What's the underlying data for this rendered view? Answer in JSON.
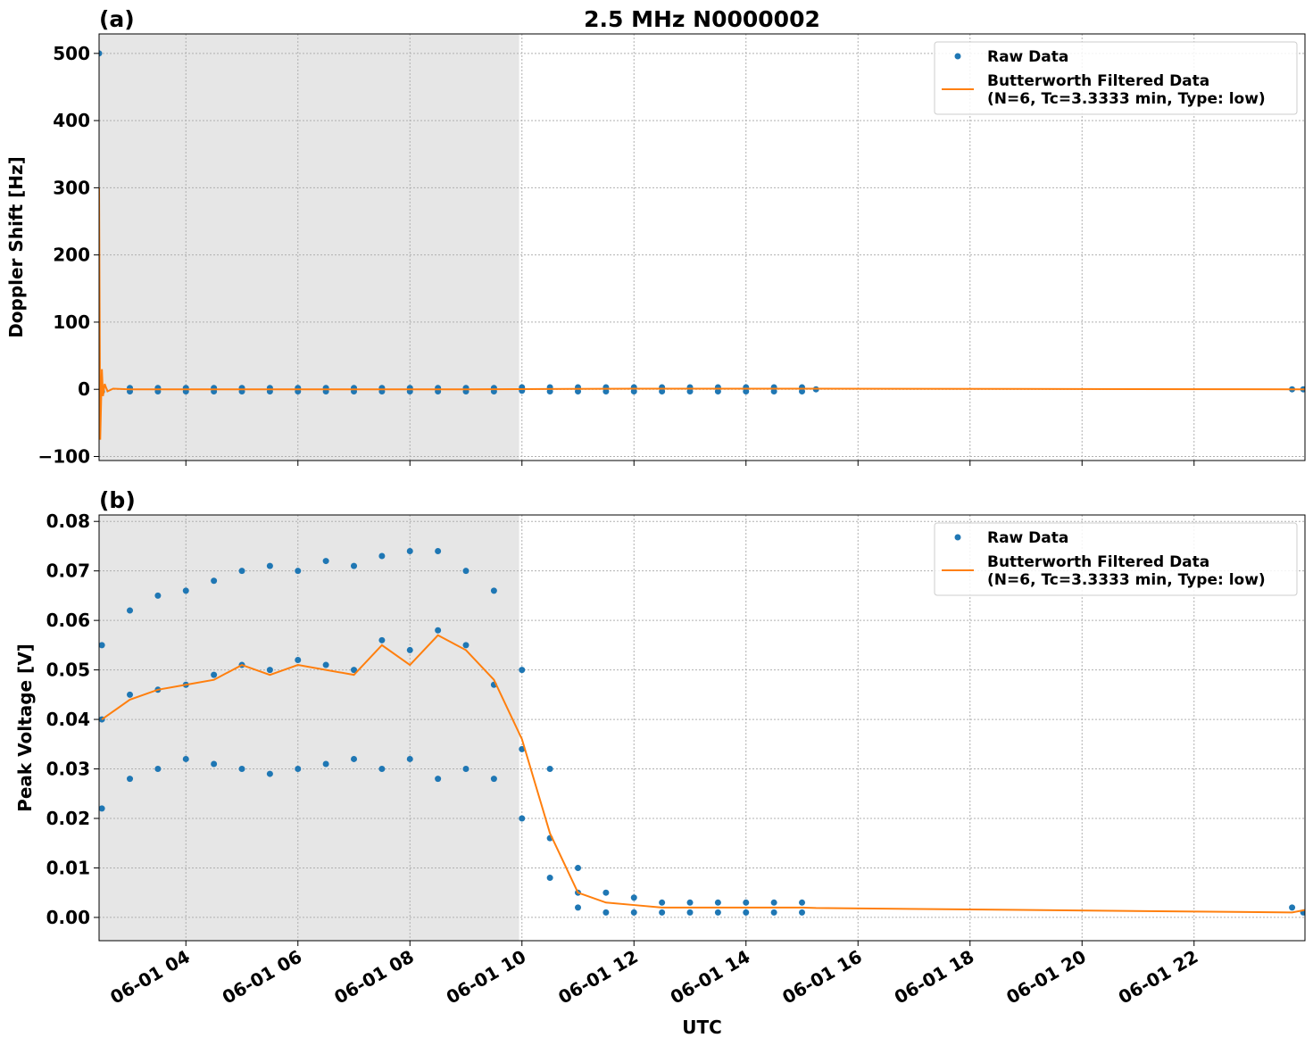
{
  "chart_data": [
    {
      "type": "scatter-line",
      "title": "2.5 MHz N0000002",
      "panel_label": "(a)",
      "ylabel": "Doppler Shift [Hz]",
      "xlim": [
        2.45,
        23.98
      ],
      "ylim": [
        -106,
        529
      ],
      "shade": [
        2.45,
        9.95
      ],
      "grid": true,
      "legend": "upper right",
      "xticks": [
        4,
        6,
        8,
        10,
        12,
        14,
        16,
        18,
        20,
        22
      ],
      "yticks": [
        {
          "value": -100,
          "label": "−100"
        },
        0,
        100,
        200,
        300,
        400,
        500
      ],
      "series": [
        {
          "name": "Raw Data",
          "color": "#1f77b4",
          "mode": "markers",
          "x": [
            2.45,
            2.5,
            2.5,
            3,
            3,
            3.5,
            3.5,
            4,
            4,
            4.5,
            4.5,
            5,
            5,
            5.5,
            5.5,
            6,
            6,
            6.5,
            6.5,
            7,
            7,
            7.5,
            7.5,
            8,
            8,
            8.5,
            8.5,
            9,
            9,
            9.5,
            9.5,
            10,
            10,
            10.5,
            10.5,
            11,
            11,
            11.5,
            11.5,
            12,
            12,
            12.5,
            12.5,
            13,
            13,
            13.5,
            13.5,
            14,
            14,
            14.5,
            14.5,
            15,
            15,
            15.25,
            23.75,
            23.95
          ],
          "values": [
            500,
            2,
            -3,
            2,
            -3,
            2,
            -3,
            2,
            -3,
            2,
            -3,
            2,
            -3,
            2,
            -3,
            2,
            -3,
            2,
            -3,
            2,
            -3,
            2,
            -3,
            2,
            -3,
            2,
            -3,
            2,
            -3,
            2,
            -3,
            3,
            -2,
            3,
            -3,
            3,
            -3,
            3,
            -3,
            3,
            -3,
            3,
            -3,
            3,
            -3,
            3,
            -3,
            3,
            -3,
            3,
            -3,
            3,
            -3,
            0,
            0,
            0
          ]
        },
        {
          "name": "Butterworth Filtered Data",
          "label_note": "(N=6, Tc=3.3333 min, Type: low)",
          "color": "#ff7f0e",
          "mode": "line",
          "x": [
            2.45,
            2.47,
            2.5,
            2.52,
            2.55,
            2.6,
            2.7,
            3,
            6,
            9,
            12,
            15.25,
            23.98
          ],
          "values": [
            300,
            -75,
            30,
            -10,
            8,
            -3,
            1,
            0,
            0,
            0,
            1,
            1,
            0
          ]
        }
      ]
    },
    {
      "type": "scatter-line",
      "panel_label": "(b)",
      "ylabel": "Peak Voltage [V]",
      "xlabel": "UTC",
      "xlim": [
        2.45,
        23.98
      ],
      "ylim": [
        -0.0047,
        0.0813
      ],
      "shade": [
        2.45,
        9.95
      ],
      "grid": true,
      "legend": "upper right",
      "xticks": [
        {
          "value": 4,
          "label": "06-01 04"
        },
        {
          "value": 6,
          "label": "06-01 06"
        },
        {
          "value": 8,
          "label": "06-01 08"
        },
        {
          "value": 10,
          "label": "06-01 10"
        },
        {
          "value": 12,
          "label": "06-01 12"
        },
        {
          "value": 14,
          "label": "06-01 14"
        },
        {
          "value": 16,
          "label": "06-01 16"
        },
        {
          "value": 18,
          "label": "06-01 18"
        },
        {
          "value": 20,
          "label": "06-01 20"
        },
        {
          "value": 22,
          "label": "06-01 22"
        }
      ],
      "yticks": [
        {
          "value": 0,
          "label": "0.00"
        },
        0.01,
        0.02,
        0.03,
        0.04,
        0.05,
        0.06,
        0.07,
        0.08
      ],
      "series": [
        {
          "name": "Raw Data",
          "color": "#1f77b4",
          "mode": "markers",
          "x": [
            2.5,
            2.5,
            2.5,
            3,
            3,
            3,
            3.5,
            3.5,
            3.5,
            4,
            4,
            4,
            4.5,
            4.5,
            4.5,
            5,
            5,
            5,
            5.5,
            5.5,
            5.5,
            6,
            6,
            6,
            6.5,
            6.5,
            6.5,
            7,
            7,
            7,
            7.5,
            7.5,
            7.5,
            8,
            8,
            8,
            8.5,
            8.5,
            8.5,
            9,
            9,
            9,
            9.5,
            9.5,
            9.5,
            10,
            10,
            10,
            10.5,
            10.5,
            10.5,
            11,
            11,
            11,
            11.5,
            11.5,
            12,
            12,
            12.5,
            12.5,
            13,
            13,
            13.5,
            13.5,
            14,
            14,
            14.5,
            14.5,
            15,
            15,
            23.75,
            23.95
          ],
          "values": [
            0.055,
            0.04,
            0.022,
            0.062,
            0.045,
            0.028,
            0.065,
            0.046,
            0.03,
            0.066,
            0.047,
            0.032,
            0.068,
            0.049,
            0.031,
            0.07,
            0.051,
            0.03,
            0.071,
            0.05,
            0.029,
            0.07,
            0.052,
            0.03,
            0.072,
            0.051,
            0.031,
            0.071,
            0.05,
            0.032,
            0.073,
            0.056,
            0.03,
            0.074,
            0.054,
            0.032,
            0.074,
            0.058,
            0.028,
            0.07,
            0.055,
            0.03,
            0.066,
            0.047,
            0.028,
            0.05,
            0.034,
            0.02,
            0.03,
            0.016,
            0.008,
            0.01,
            0.005,
            0.002,
            0.005,
            0.001,
            0.004,
            0.001,
            0.003,
            0.001,
            0.003,
            0.001,
            0.003,
            0.001,
            0.003,
            0.001,
            0.003,
            0.001,
            0.003,
            0.001,
            0.002,
            0.001
          ]
        },
        {
          "name": "Butterworth Filtered Data",
          "label_note": "(N=6, Tc=3.3333 min, Type: low)",
          "color": "#ff7f0e",
          "mode": "line",
          "x": [
            2.5,
            3,
            3.5,
            4,
            4.5,
            5,
            5.5,
            6,
            6.5,
            7,
            7.5,
            8,
            8.5,
            9,
            9.5,
            10,
            10.5,
            11,
            11.5,
            12,
            12.5,
            13,
            14,
            15,
            15.25,
            23.75,
            23.98
          ],
          "values": [
            0.04,
            0.044,
            0.046,
            0.047,
            0.048,
            0.051,
            0.049,
            0.051,
            0.05,
            0.049,
            0.055,
            0.051,
            0.057,
            0.054,
            0.048,
            0.036,
            0.017,
            0.005,
            0.003,
            0.0025,
            0.002,
            0.002,
            0.002,
            0.002,
            0.0019,
            0.001,
            0.0015
          ]
        }
      ]
    }
  ]
}
